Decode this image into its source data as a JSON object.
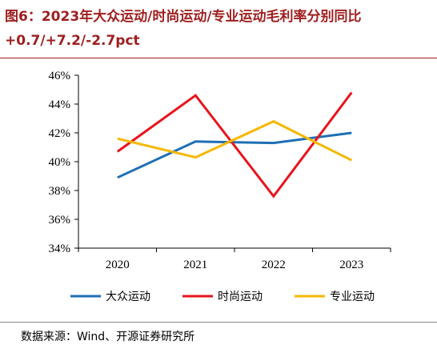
{
  "title": "图6：2023年大众运动/时尚运动/专业运动毛利率分别同比+0.7/+7.2/-2.7pct",
  "source": "数据来源：Wind、开源证券研究所",
  "chart_data": {
    "type": "line",
    "categories": [
      "2020",
      "2021",
      "2022",
      "2023"
    ],
    "ylim": [
      34,
      46
    ],
    "yticks": [
      "34%",
      "36%",
      "38%",
      "40%",
      "42%",
      "44%",
      "46%"
    ],
    "ytick_values": [
      34,
      36,
      38,
      40,
      42,
      44,
      46
    ],
    "grid": false,
    "legend_position": "bottom",
    "series": [
      {
        "name": "大众运动",
        "color": "#1f6fb5",
        "values": [
          38.9,
          41.4,
          41.3,
          42.0
        ]
      },
      {
        "name": "时尚运动",
        "color": "#e8141c",
        "values": [
          40.7,
          44.6,
          37.6,
          44.8
        ]
      },
      {
        "name": "专业运动",
        "color": "#f5b800",
        "values": [
          41.6,
          40.3,
          42.8,
          40.1
        ]
      }
    ]
  }
}
